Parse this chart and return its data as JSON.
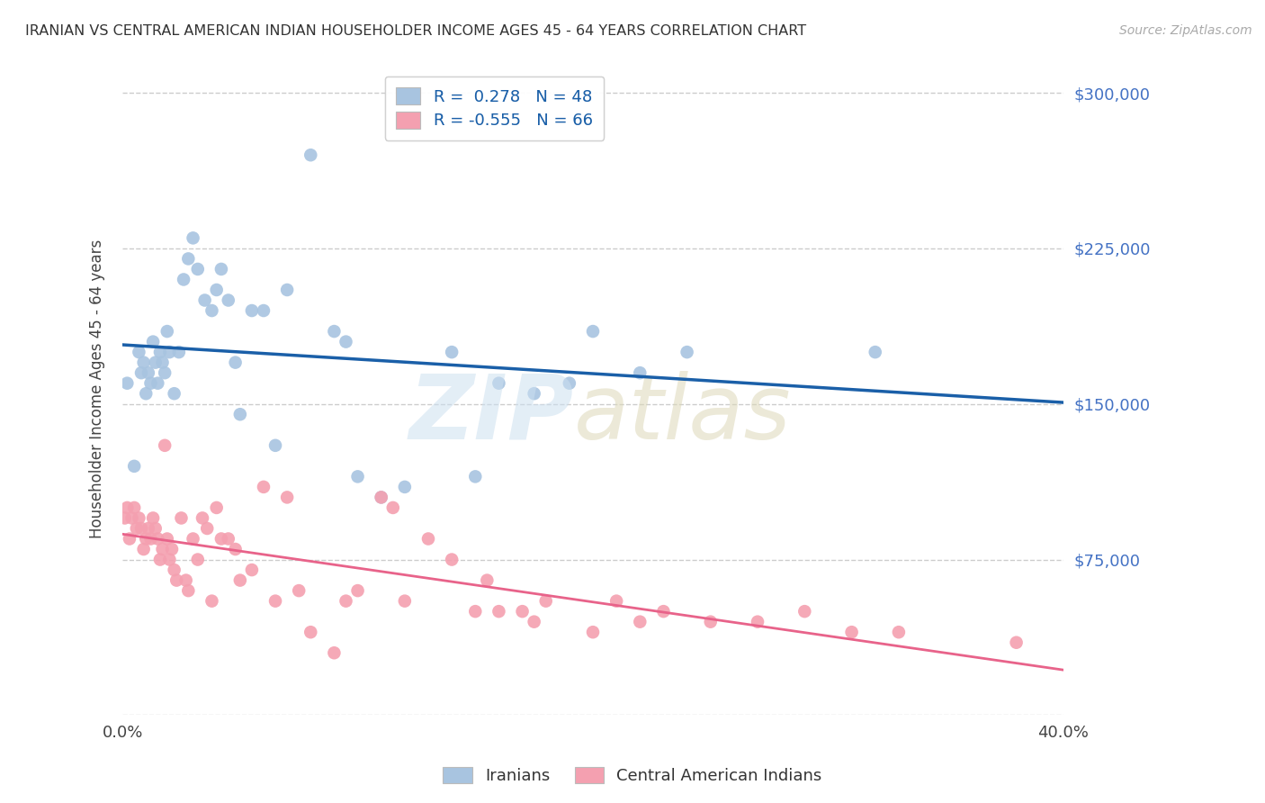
{
  "title": "IRANIAN VS CENTRAL AMERICAN INDIAN HOUSEHOLDER INCOME AGES 45 - 64 YEARS CORRELATION CHART",
  "source": "Source: ZipAtlas.com",
  "ylabel": "Householder Income Ages 45 - 64 years",
  "xlim": [
    0.0,
    0.4
  ],
  "ylim": [
    0,
    315000
  ],
  "ytick_positions": [
    0,
    75000,
    150000,
    225000,
    300000
  ],
  "ytick_labels": [
    "",
    "$75,000",
    "$150,000",
    "$225,000",
    "$300,000"
  ],
  "xtick_positions": [
    0.0,
    0.1,
    0.2,
    0.3,
    0.4
  ],
  "xtick_labels": [
    "0.0%",
    "",
    "",
    "",
    "40.0%"
  ],
  "blue_color": "#a8c4e0",
  "pink_color": "#f4a0b0",
  "blue_line_color": "#1a5fa8",
  "pink_line_color": "#e8638a",
  "legend_r_blue": "R =  0.278   N = 48",
  "legend_r_pink": "R = -0.555   N = 66",
  "bottom_legend_blue": "Iranians",
  "bottom_legend_pink": "Central American Indians",
  "blue_scatter_x": [
    0.002,
    0.005,
    0.007,
    0.008,
    0.009,
    0.01,
    0.011,
    0.012,
    0.013,
    0.014,
    0.015,
    0.016,
    0.017,
    0.018,
    0.019,
    0.02,
    0.022,
    0.024,
    0.026,
    0.028,
    0.03,
    0.032,
    0.035,
    0.038,
    0.04,
    0.042,
    0.045,
    0.048,
    0.05,
    0.055,
    0.06,
    0.065,
    0.07,
    0.08,
    0.09,
    0.095,
    0.1,
    0.11,
    0.12,
    0.14,
    0.15,
    0.16,
    0.175,
    0.19,
    0.2,
    0.22,
    0.24,
    0.32
  ],
  "blue_scatter_y": [
    160000,
    120000,
    175000,
    165000,
    170000,
    155000,
    165000,
    160000,
    180000,
    170000,
    160000,
    175000,
    170000,
    165000,
    185000,
    175000,
    155000,
    175000,
    210000,
    220000,
    230000,
    215000,
    200000,
    195000,
    205000,
    215000,
    200000,
    170000,
    145000,
    195000,
    195000,
    130000,
    205000,
    270000,
    185000,
    180000,
    115000,
    105000,
    110000,
    175000,
    115000,
    160000,
    155000,
    160000,
    185000,
    165000,
    175000,
    175000
  ],
  "pink_scatter_x": [
    0.001,
    0.002,
    0.003,
    0.004,
    0.005,
    0.006,
    0.007,
    0.008,
    0.009,
    0.01,
    0.011,
    0.012,
    0.013,
    0.014,
    0.015,
    0.016,
    0.017,
    0.018,
    0.019,
    0.02,
    0.021,
    0.022,
    0.023,
    0.025,
    0.027,
    0.028,
    0.03,
    0.032,
    0.034,
    0.036,
    0.038,
    0.04,
    0.042,
    0.045,
    0.048,
    0.05,
    0.055,
    0.06,
    0.065,
    0.07,
    0.075,
    0.08,
    0.09,
    0.095,
    0.1,
    0.11,
    0.115,
    0.12,
    0.13,
    0.14,
    0.15,
    0.155,
    0.16,
    0.17,
    0.175,
    0.18,
    0.2,
    0.21,
    0.22,
    0.23,
    0.25,
    0.27,
    0.29,
    0.31,
    0.33,
    0.38
  ],
  "pink_scatter_y": [
    95000,
    100000,
    85000,
    95000,
    100000,
    90000,
    95000,
    90000,
    80000,
    85000,
    90000,
    85000,
    95000,
    90000,
    85000,
    75000,
    80000,
    130000,
    85000,
    75000,
    80000,
    70000,
    65000,
    95000,
    65000,
    60000,
    85000,
    75000,
    95000,
    90000,
    55000,
    100000,
    85000,
    85000,
    80000,
    65000,
    70000,
    110000,
    55000,
    105000,
    60000,
    40000,
    30000,
    55000,
    60000,
    105000,
    100000,
    55000,
    85000,
    75000,
    50000,
    65000,
    50000,
    50000,
    45000,
    55000,
    40000,
    55000,
    45000,
    50000,
    45000,
    45000,
    50000,
    40000,
    40000,
    35000
  ]
}
